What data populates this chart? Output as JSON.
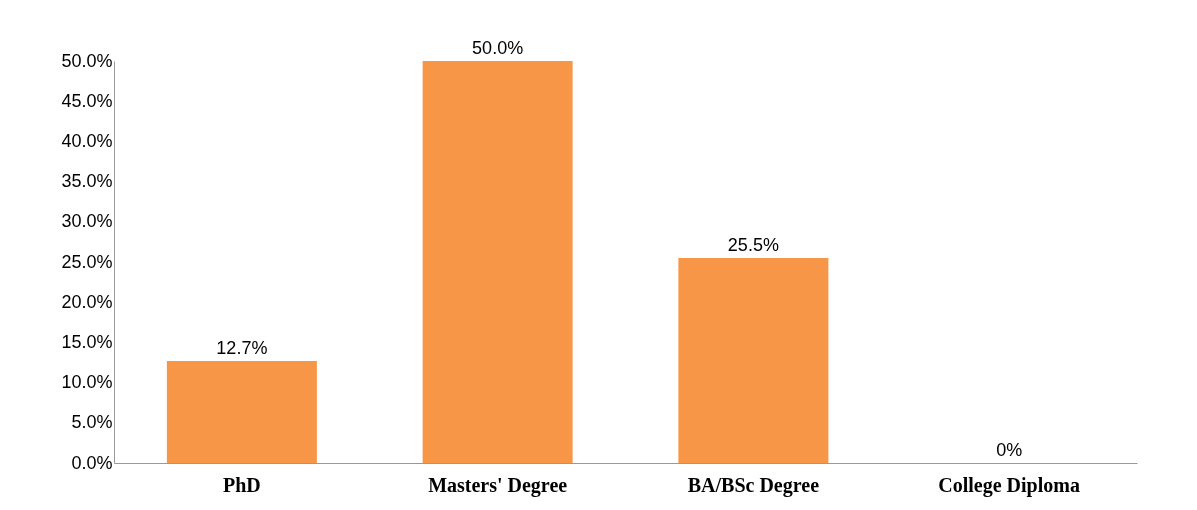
{
  "chart_data": {
    "type": "bar",
    "categories": [
      "PhD",
      "Masters' Degree",
      "BA/BSc Degree",
      "College Diploma"
    ],
    "values": [
      12.7,
      50.0,
      25.5,
      0
    ],
    "value_labels": [
      "12.7%",
      "50.0%",
      "25.5%",
      "0%"
    ],
    "color": "#f79646",
    "ylim": [
      0,
      50
    ],
    "yticks": [
      {
        "value": 0,
        "label": "0.0%"
      },
      {
        "value": 5,
        "label": "5.0%"
      },
      {
        "value": 10,
        "label": "10.0%"
      },
      {
        "value": 15,
        "label": "15.0%"
      },
      {
        "value": 20,
        "label": "20.0%"
      },
      {
        "value": 25,
        "label": "25.0%"
      },
      {
        "value": 30,
        "label": "30.0%"
      },
      {
        "value": 35,
        "label": "35.0%"
      },
      {
        "value": 40,
        "label": "40.0%"
      },
      {
        "value": 45,
        "label": "45.0%"
      },
      {
        "value": 50,
        "label": "50.0%"
      }
    ],
    "grid": false
  }
}
